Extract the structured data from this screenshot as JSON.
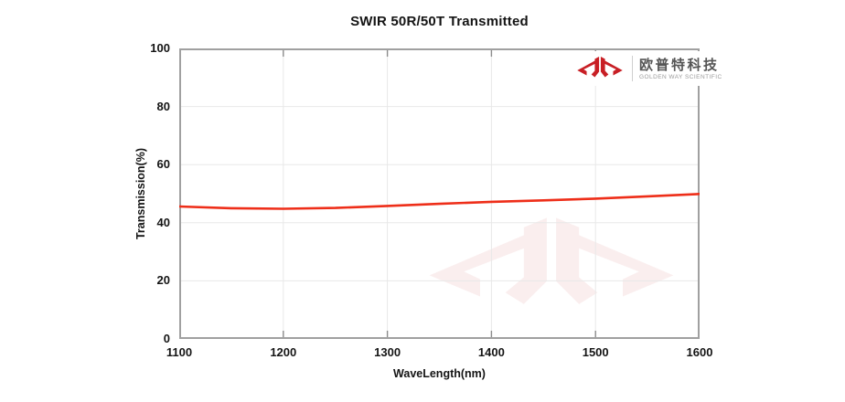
{
  "chart_data": {
    "type": "line",
    "title": "SWIR 50R/50T Transmitted",
    "xlabel": "WaveLength(nm)",
    "ylabel": "Transmission(%)",
    "xlim": [
      1100,
      1600
    ],
    "ylim": [
      0,
      100
    ],
    "x_ticks": [
      1100,
      1200,
      1300,
      1400,
      1500,
      1600
    ],
    "y_ticks": [
      0,
      20,
      40,
      60,
      80,
      100
    ],
    "grid": true,
    "legend": "none",
    "series": [
      {
        "name": "Transmitted",
        "color": "#ee2e19",
        "x": [
          1100,
          1150,
          1200,
          1250,
          1300,
          1350,
          1400,
          1450,
          1500,
          1550,
          1600
        ],
        "y": [
          45.6,
          45.0,
          44.8,
          45.1,
          45.8,
          46.5,
          47.2,
          47.7,
          48.3,
          49.1,
          49.9
        ]
      }
    ],
    "colors": {
      "gridline": "#e8e8e8",
      "border": "#a0a0a0",
      "tick_mark": "#8c8c8c"
    }
  },
  "logo": {
    "cn_name": "欧普特科技",
    "en_name": "GOLDEN WAY SCIENTIFIC",
    "brand_color": "#c81f25",
    "icon": "jc-arrows-monogram"
  }
}
